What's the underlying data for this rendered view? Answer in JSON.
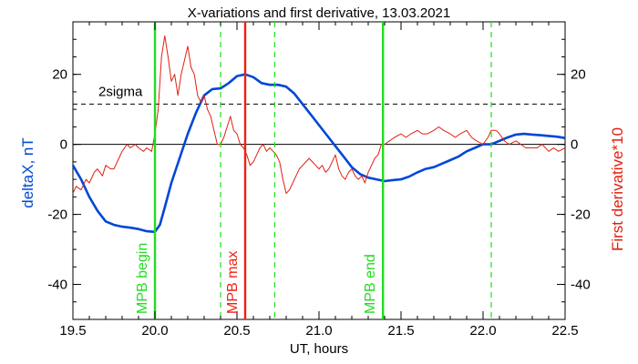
{
  "chart_data": {
    "type": "line",
    "title": "X-variations and first derivative, 13.03.2021",
    "xlabel": "UT, hours",
    "ylabel": "deltaX, nT",
    "y2label": "First derivative*10",
    "xlim": [
      19.5,
      22.5
    ],
    "ylim": [
      -50,
      35
    ],
    "y2lim": [
      -50,
      35
    ],
    "xticks": [
      "19.5",
      "20.0",
      "20.5",
      "21.0",
      "21.5",
      "22.0",
      "22.5"
    ],
    "xtick_values": [
      19.5,
      20.0,
      20.5,
      21.0,
      21.5,
      22.0,
      22.5
    ],
    "yticks": [
      "-40",
      "-20",
      "0",
      "20"
    ],
    "ytick_values": [
      -40,
      -20,
      0,
      20
    ],
    "colors": {
      "deltaX": "#0047d6",
      "derivative": "#e02010",
      "mpb": "#22dd22",
      "mpb_max": "#ee2211",
      "axis_left_label": "#0047d6",
      "axis_right_label": "#e02010"
    },
    "sigma": {
      "label": "2sigma",
      "value": 11.5
    },
    "vlines": [
      {
        "label": "MPB begin",
        "x": 20.0,
        "style": "solid",
        "color": "mpb"
      },
      {
        "label": "",
        "x": 20.4,
        "style": "dashed",
        "color": "mpb"
      },
      {
        "label": "MPB max",
        "x": 20.55,
        "style": "solid",
        "color": "mpb_max"
      },
      {
        "label": "",
        "x": 20.73,
        "style": "dashed",
        "color": "mpb"
      },
      {
        "label": "MPB end",
        "x": 21.39,
        "style": "solid",
        "color": "mpb"
      },
      {
        "label": "",
        "x": 22.05,
        "style": "dashed",
        "color": "mpb"
      }
    ],
    "series": [
      {
        "name": "deltaX, nT",
        "axis": "left",
        "x": [
          19.5,
          19.55,
          19.6,
          19.65,
          19.7,
          19.75,
          19.8,
          19.85,
          19.9,
          19.95,
          20.0,
          20.03,
          20.06,
          20.1,
          20.15,
          20.2,
          20.25,
          20.3,
          20.35,
          20.4,
          20.45,
          20.5,
          20.55,
          20.6,
          20.65,
          20.7,
          20.75,
          20.8,
          20.85,
          20.9,
          20.95,
          21.0,
          21.05,
          21.1,
          21.15,
          21.2,
          21.25,
          21.3,
          21.35,
          21.4,
          21.45,
          21.5,
          21.55,
          21.6,
          21.65,
          21.7,
          21.75,
          21.8,
          21.85,
          21.9,
          21.95,
          22.0,
          22.05,
          22.1,
          22.15,
          22.2,
          22.25,
          22.3,
          22.35,
          22.4,
          22.45,
          22.5
        ],
        "values": [
          -6,
          -10,
          -15,
          -19,
          -22,
          -23,
          -23.5,
          -23.8,
          -24.2,
          -24.8,
          -25,
          -23,
          -18,
          -11,
          -4,
          3,
          9,
          14,
          15.8,
          16,
          17.5,
          19.5,
          20,
          19.2,
          17.5,
          17,
          17,
          16.5,
          14.5,
          11.5,
          8.5,
          5.5,
          2.5,
          -0.5,
          -3.5,
          -6.5,
          -8.5,
          -9.5,
          -10,
          -10.5,
          -10.2,
          -10,
          -9.2,
          -8,
          -7,
          -6.5,
          -5.5,
          -4.5,
          -3.5,
          -2,
          -1,
          0,
          0,
          1,
          2,
          2.8,
          3,
          2.8,
          2.6,
          2.4,
          2.2,
          1.8
        ]
      },
      {
        "name": "First derivative*10",
        "axis": "right",
        "x": [
          19.5,
          19.52,
          19.55,
          19.58,
          19.6,
          19.63,
          19.65,
          19.68,
          19.7,
          19.73,
          19.75,
          19.78,
          19.8,
          19.83,
          19.85,
          19.88,
          19.9,
          19.93,
          19.95,
          19.98,
          20.0,
          20.02,
          20.04,
          20.06,
          20.08,
          20.1,
          20.12,
          20.14,
          20.16,
          20.18,
          20.2,
          20.22,
          20.24,
          20.26,
          20.28,
          20.3,
          20.32,
          20.34,
          20.36,
          20.38,
          20.4,
          20.42,
          20.44,
          20.46,
          20.48,
          20.5,
          20.52,
          20.54,
          20.56,
          20.58,
          20.6,
          20.62,
          20.64,
          20.66,
          20.68,
          20.7,
          20.72,
          20.74,
          20.76,
          20.78,
          20.8,
          20.82,
          20.84,
          20.86,
          20.88,
          20.9,
          20.92,
          20.94,
          20.96,
          20.98,
          21.0,
          21.02,
          21.04,
          21.06,
          21.08,
          21.1,
          21.12,
          21.14,
          21.16,
          21.18,
          21.2,
          21.22,
          21.24,
          21.26,
          21.28,
          21.3,
          21.32,
          21.34,
          21.36,
          21.38,
          21.4,
          21.43,
          21.46,
          21.5,
          21.53,
          21.56,
          21.6,
          21.63,
          21.66,
          21.7,
          21.73,
          21.76,
          21.8,
          21.83,
          21.86,
          21.9,
          21.93,
          21.96,
          22.0,
          22.03,
          22.05,
          22.08,
          22.1,
          22.13,
          22.16,
          22.2,
          22.23,
          22.26,
          22.3,
          22.33,
          22.36,
          22.4,
          22.43,
          22.46,
          22.5
        ],
        "values": [
          -14,
          -12,
          -13,
          -10,
          -11,
          -8,
          -7,
          -9,
          -6,
          -7,
          -7,
          -4,
          -2,
          0,
          -1,
          0,
          -1,
          -2,
          -1,
          -2,
          3,
          10,
          25,
          31,
          25,
          18,
          20,
          14,
          20,
          24,
          28,
          22,
          20,
          14,
          12,
          14,
          10,
          8,
          4,
          0,
          0,
          2,
          5,
          8,
          4,
          3,
          0,
          -1,
          -3,
          -6,
          -5,
          -3,
          -1,
          0,
          -2,
          -1,
          -2,
          -3,
          -5,
          -10,
          -14,
          -13,
          -11,
          -9,
          -7,
          -6,
          -5,
          -4,
          -5,
          -6,
          -7,
          -6,
          -8,
          -7,
          -5,
          -3,
          -7,
          -9,
          -10,
          -8,
          -7,
          -9,
          -10,
          -9,
          -11,
          -8,
          -6,
          -4,
          -3,
          0,
          0,
          1,
          2,
          3,
          2,
          3,
          4,
          3,
          3,
          4,
          5,
          4,
          3,
          2,
          3,
          4,
          2,
          1,
          0,
          2,
          4,
          4,
          3,
          1,
          0,
          1,
          0,
          -1,
          -1,
          -1,
          0,
          -2,
          -1,
          -2,
          -1
        ]
      }
    ]
  }
}
